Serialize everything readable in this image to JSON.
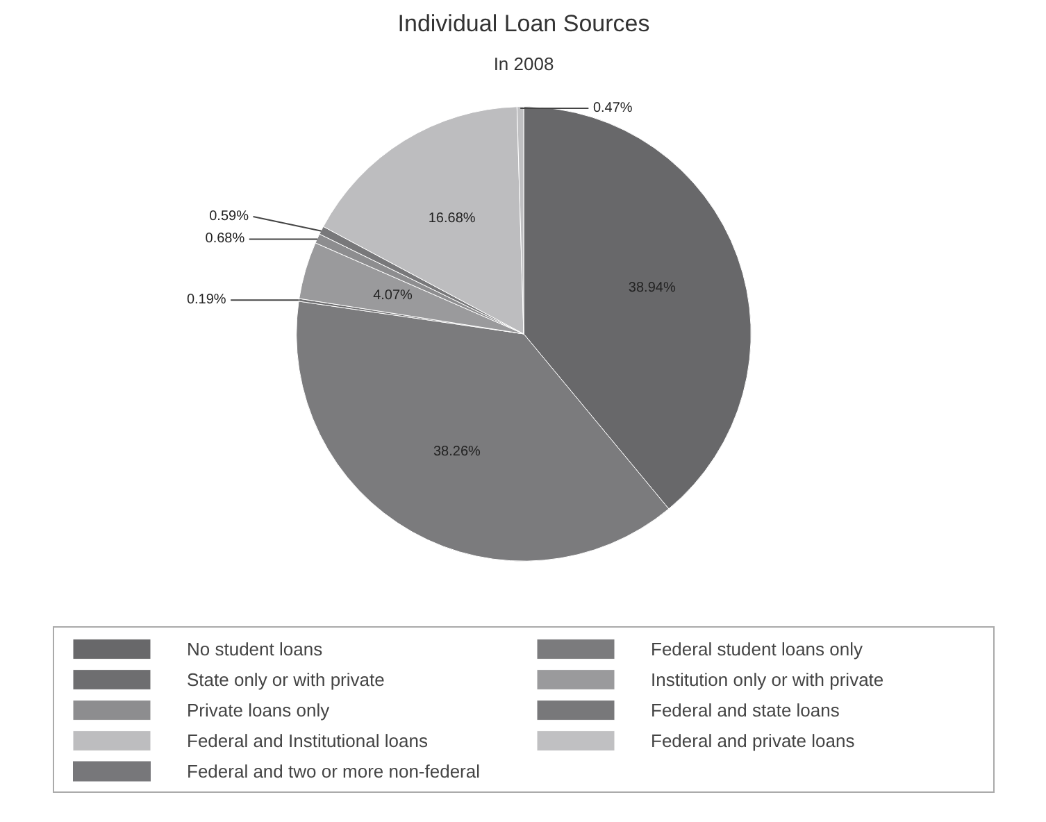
{
  "chart_data": {
    "type": "pie",
    "title": "Individual Loan Sources",
    "subtitle": "In 2008",
    "categories": [
      "No student loans",
      "Federal student loans only",
      "State only or with private",
      "Institution only or with private",
      "Private loans only",
      "Federal and state loans",
      "Federal and Institutional loans",
      "Federal and private loans",
      "Federal and two or more non-federal"
    ],
    "values": [
      38.94,
      38.26,
      0.19,
      4.07,
      0.68,
      0.59,
      16.68,
      0.47,
      null
    ],
    "value_labels": [
      "38.94%",
      "38.26%",
      "0.19%",
      "4.07%",
      "0.68%",
      "0.59%",
      "16.68%",
      "0.47%",
      null
    ],
    "colors": [
      "#68686a",
      "#7b7b7d",
      "#6e6e70",
      "#9a9a9c",
      "#8d8d8f",
      "#78787a",
      "#bdbdbf",
      "#c0c0c2",
      "#77777a"
    ],
    "legend": "bottom"
  }
}
